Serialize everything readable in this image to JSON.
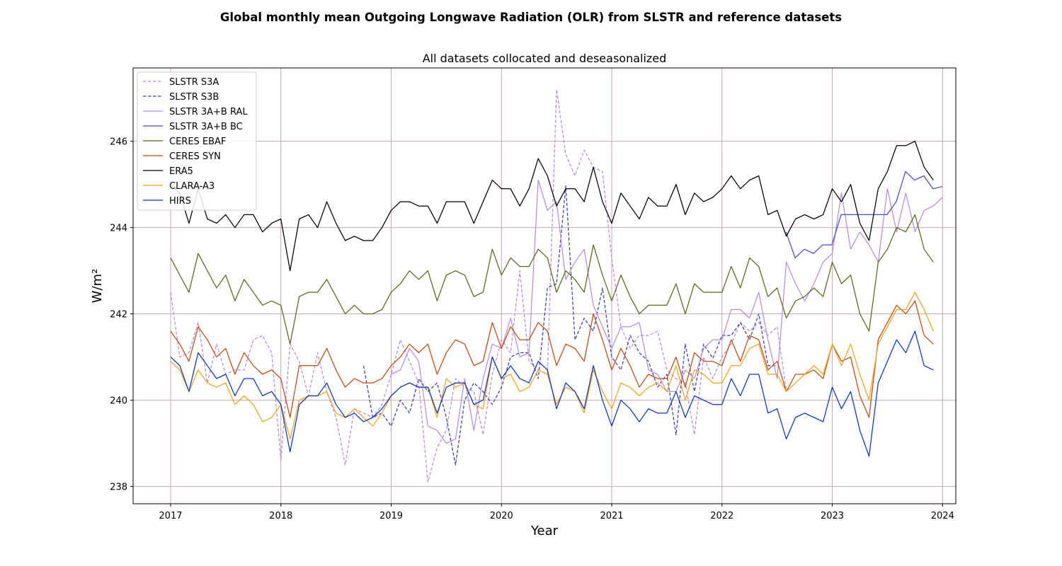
{
  "chart_data": {
    "type": "line",
    "suptitle": "Global monthly mean Outgoing Longwave Radiation (OLR) from SLSTR and reference datasets",
    "title": "All datasets collocated and deseasonalized",
    "xlabel": "Year",
    "ylabel": "W/m²",
    "xlim": [
      2016.66,
      2024.12
    ],
    "ylim": [
      237.6,
      247.7
    ],
    "xticks": [
      2017,
      2018,
      2019,
      2020,
      2021,
      2022,
      2023,
      2024
    ],
    "yticks": [
      238,
      240,
      242,
      244,
      246
    ],
    "grid": true,
    "grid_color": "#c9a9b3",
    "legend_position": "top-left",
    "series": [
      {
        "name": "SLSTR S3A",
        "color": "#b48ee6",
        "dash": "dashed",
        "start": 2017.0,
        "values": [
          242.5,
          241.0,
          241.1,
          241.8,
          240.4,
          241.3,
          240.6,
          240.7,
          240.7,
          241.4,
          241.5,
          241.1,
          238.6,
          241.3,
          240.9,
          240.1,
          241.1,
          240.2,
          239.6,
          238.5,
          239.8,
          239.7,
          239.6,
          239.9,
          240.6,
          241.4,
          240.9,
          240.4,
          238.1,
          238.9,
          239.3,
          240.5,
          240.3,
          240.2,
          239.2,
          240.6,
          241.4,
          241.1,
          243.0,
          240.9,
          240.7,
          240.6,
          247.2,
          245.7,
          245.2,
          245.8,
          245.4,
          245.3,
          243.3,
          241.7,
          241.2,
          241.5,
          241.5,
          241.6,
          240.7,
          240.5,
          240.4,
          239.2,
          241.0,
          240.5,
          241.0,
          241.3,
          241.8,
          241.6,
          241.8,
          241.5,
          241.7,
          240.2,
          null,
          null,
          null,
          null,
          null,
          null,
          null,
          null,
          null,
          null,
          null,
          null,
          null,
          null,
          null,
          null
        ]
      },
      {
        "name": "SLSTR S3B",
        "color": "#3b3fb5",
        "dash": "dashed",
        "start": 2018.75,
        "values": [
          240.8,
          239.6,
          239.7,
          239.4,
          240.0,
          239.7,
          240.5,
          240.2,
          240.4,
          239.6,
          238.5,
          240.0,
          240.4,
          240.2,
          239.9,
          240.3,
          241.0,
          241.1,
          241.1,
          240.5,
          242.6,
          242.7,
          244.97,
          241.4,
          241.9,
          241.6,
          242.6,
          241.0,
          240.7,
          241.5,
          241.1,
          240.9,
          240.3,
          240.6,
          239.2,
          241.3,
          240.2,
          241.3,
          240.97,
          241.5,
          241.5,
          241.8,
          241.4,
          242.0,
          240.8,
          240.8
        ]
      },
      {
        "name": "SLSTR 3A+B RAL",
        "color": "#b48ee6",
        "dash": "solid",
        "start": 2019.0,
        "values": [
          240.6,
          240.7,
          241.2,
          240.9,
          239.4,
          239.3,
          239.0,
          239.1,
          240.5,
          239.3,
          240.5,
          241.3,
          241.2,
          241.9,
          241.0,
          241.1,
          245.1,
          244.4,
          244.6,
          242.8,
          243.2,
          243.5,
          242.2,
          241.7,
          241.2,
          241.7,
          241.7,
          241.8,
          240.7,
          240.6,
          240.2,
          240.2,
          240.7,
          240.5,
          241.2,
          241.4,
          241.4,
          242.1,
          242.1,
          241.9,
          242.5,
          241.4,
          240.5,
          243.2,
          242.7,
          242.3,
          242.7,
          243.2,
          243.4,
          244.8,
          243.5,
          243.9,
          243.6,
          243.2,
          244.9,
          243.9,
          244.8,
          243.9,
          244.4,
          244.5,
          244.7
        ]
      },
      {
        "name": "SLSTR 3A+B BC",
        "color": "#4a4acf",
        "dash": "solid",
        "start": 2022.58,
        "values": [
          243.9,
          243.3,
          243.5,
          243.4,
          243.6,
          243.6,
          244.3,
          244.3,
          244.3,
          244.3,
          244.3,
          244.3,
          244.6,
          245.3,
          245.1,
          245.2,
          244.9,
          244.95
        ]
      },
      {
        "name": "CERES EBAF",
        "color": "#556b1a",
        "dash": "solid",
        "start": 2017.0,
        "values": [
          243.3,
          242.9,
          242.5,
          243.4,
          243.0,
          242.6,
          242.9,
          242.3,
          242.8,
          242.5,
          242.2,
          242.3,
          242.2,
          241.3,
          242.4,
          242.5,
          242.5,
          242.8,
          242.4,
          242.0,
          242.2,
          242.0,
          242.0,
          242.1,
          242.5,
          242.7,
          243.0,
          242.8,
          243.0,
          242.3,
          242.9,
          243.0,
          242.9,
          242.4,
          242.5,
          243.5,
          242.9,
          243.3,
          243.1,
          243.1,
          243.5,
          243.3,
          242.5,
          243.0,
          242.8,
          242.5,
          243.6,
          242.9,
          242.3,
          242.9,
          242.4,
          242.0,
          242.2,
          242.2,
          242.2,
          242.7,
          242.0,
          242.7,
          242.5,
          242.5,
          242.5,
          243.1,
          242.6,
          243.3,
          243.1,
          242.4,
          242.6,
          241.9,
          242.3,
          242.4,
          242.6,
          242.4,
          243.2,
          242.7,
          242.9,
          242.0,
          241.6,
          243.2,
          243.5,
          244.0,
          243.9,
          244.3,
          243.5,
          243.2
        ]
      },
      {
        "name": "CERES SYN",
        "color": "#c24a10",
        "dash": "solid",
        "start": 2017.0,
        "values": [
          241.6,
          241.3,
          240.9,
          241.7,
          241.4,
          241.0,
          241.2,
          240.6,
          241.1,
          240.8,
          240.6,
          240.7,
          240.5,
          239.6,
          240.8,
          240.8,
          240.8,
          241.2,
          240.7,
          240.3,
          240.5,
          240.4,
          240.4,
          240.5,
          240.8,
          241.0,
          241.3,
          241.1,
          241.3,
          240.6,
          241.1,
          241.4,
          241.3,
          240.8,
          240.9,
          241.8,
          241.2,
          241.7,
          241.4,
          241.4,
          241.8,
          241.6,
          240.8,
          241.3,
          241.2,
          240.9,
          242.0,
          241.4,
          240.7,
          241.2,
          240.8,
          240.3,
          240.6,
          240.5,
          240.5,
          241.0,
          240.3,
          241.1,
          240.9,
          240.9,
          240.8,
          241.4,
          240.9,
          241.5,
          241.4,
          240.7,
          240.9,
          240.2,
          240.6,
          240.6,
          240.7,
          240.5,
          241.3,
          240.9,
          241.0,
          240.1,
          239.6,
          241.4,
          241.8,
          242.2,
          242.0,
          242.3,
          241.5,
          241.3
        ]
      },
      {
        "name": "ERA5",
        "color": "#000000",
        "dash": "solid",
        "start": 2017.0,
        "values": [
          245.0,
          244.8,
          244.1,
          244.9,
          244.2,
          244.1,
          244.3,
          244.0,
          244.3,
          244.3,
          243.9,
          244.1,
          244.2,
          243.0,
          244.2,
          244.3,
          244.0,
          244.6,
          244.1,
          243.7,
          243.8,
          243.7,
          243.7,
          244.0,
          244.4,
          244.6,
          244.6,
          244.5,
          244.5,
          244.1,
          244.6,
          244.6,
          244.6,
          244.1,
          244.6,
          245.1,
          244.9,
          244.9,
          244.5,
          244.9,
          245.6,
          245.2,
          244.5,
          244.9,
          244.9,
          244.6,
          245.4,
          244.6,
          244.1,
          244.8,
          244.5,
          244.2,
          244.7,
          244.5,
          244.5,
          245.0,
          244.3,
          244.8,
          244.6,
          244.7,
          244.9,
          245.2,
          244.9,
          245.1,
          245.2,
          244.3,
          244.4,
          243.8,
          244.2,
          244.3,
          244.2,
          244.3,
          244.9,
          244.6,
          245.0,
          244.1,
          243.7,
          244.9,
          245.3,
          245.9,
          245.9,
          246.0,
          245.4,
          245.1
        ]
      },
      {
        "name": "CLARA-A3",
        "color": "#f0a51c",
        "dash": "solid",
        "start": 2017.0,
        "values": [
          240.9,
          240.7,
          240.2,
          240.7,
          240.4,
          240.3,
          240.4,
          239.9,
          240.1,
          239.9,
          239.5,
          239.6,
          239.9,
          239.1,
          240.0,
          240.1,
          240.1,
          240.2,
          239.7,
          239.6,
          239.8,
          239.6,
          239.4,
          239.7,
          240.1,
          240.3,
          240.4,
          240.3,
          240.3,
          239.6,
          240.5,
          240.3,
          240.4,
          239.9,
          239.8,
          241.0,
          240.5,
          240.6,
          240.2,
          240.3,
          240.7,
          240.6,
          239.9,
          240.3,
          240.2,
          239.7,
          240.7,
          240.2,
          239.8,
          240.4,
          240.3,
          240.1,
          240.3,
          240.4,
          240.2,
          240.8,
          240.0,
          240.7,
          240.6,
          240.4,
          240.4,
          240.8,
          240.8,
          241.2,
          241.3,
          240.6,
          240.6,
          240.2,
          240.4,
          240.6,
          240.8,
          240.6,
          241.3,
          240.8,
          241.3,
          240.6,
          240.0,
          241.3,
          241.7,
          242.1,
          242.1,
          242.5,
          242.1,
          241.6
        ]
      },
      {
        "name": "HIRS",
        "color": "#0a35c2",
        "dash": "solid",
        "start": 2017.0,
        "values": [
          241.0,
          240.8,
          240.2,
          241.1,
          240.8,
          240.5,
          240.6,
          240.1,
          240.5,
          240.5,
          240.1,
          240.2,
          239.9,
          238.8,
          239.9,
          240.1,
          240.1,
          240.4,
          239.9,
          239.6,
          239.7,
          239.5,
          239.6,
          239.8,
          240.1,
          240.3,
          240.4,
          240.3,
          240.3,
          239.7,
          240.3,
          240.4,
          240.4,
          239.9,
          240.0,
          241.0,
          240.5,
          240.8,
          240.5,
          240.4,
          240.9,
          240.7,
          239.8,
          240.4,
          240.2,
          239.8,
          240.8,
          240.0,
          239.4,
          240.0,
          239.8,
          239.5,
          239.8,
          239.7,
          239.7,
          240.2,
          239.6,
          240.1,
          240.0,
          239.9,
          239.9,
          240.5,
          240.1,
          240.6,
          240.6,
          239.7,
          239.8,
          239.1,
          239.6,
          239.7,
          239.6,
          239.5,
          240.3,
          239.8,
          240.2,
          239.3,
          238.7,
          240.4,
          240.9,
          241.4,
          241.1,
          241.6,
          240.8,
          240.7
        ]
      }
    ]
  }
}
